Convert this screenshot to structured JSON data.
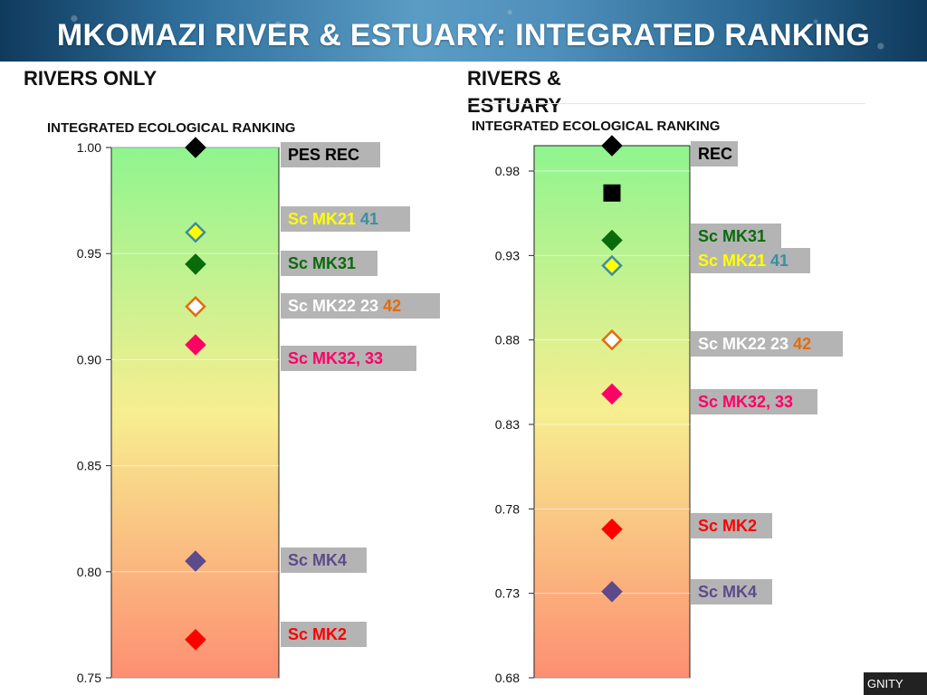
{
  "title": "MKOMAZI RIVER & ESTUARY: INTEGRATED RANKING",
  "sections": {
    "left": "RIVERS ONLY",
    "right_line1": "RIVERS  &",
    "right_line2": "ESTUARY"
  },
  "footer_text": "GNITY",
  "colors": {
    "gradient_top": "#8ff58f",
    "gradient_mid": "#f7ee90",
    "gradient_bottom": "#fd8f72",
    "label_box": "#b4b4b4",
    "black": "#000000",
    "dark_green": "#0a6b0a",
    "yellow": "#ffff00",
    "teal": "#3c8ea0",
    "white": "#ffffff",
    "orange": "#e36c0a",
    "pink": "#ff0066",
    "red": "#ff0000",
    "purple": "#5c4a8a"
  },
  "chart_data": [
    {
      "type": "scatter",
      "title": "INTEGRATED ECOLOGICAL RANKING",
      "ylim": [
        0.75,
        1.0
      ],
      "yticks": [
        1.0,
        0.95,
        0.9,
        0.85,
        0.8,
        0.75
      ],
      "ytick_labels": [
        "1.00",
        "0.95",
        "0.90",
        "0.85",
        "0.80",
        "0.75"
      ],
      "grid": true,
      "points": [
        {
          "label_parts": [
            {
              "text": "PES REC",
              "color": "#000000"
            }
          ],
          "value": 1.0,
          "marker": "diamond",
          "fill": "#000000",
          "stroke": "#000000"
        },
        {
          "label_parts": [
            {
              "text": "Sc MK21 ",
              "color": "#ffff00"
            },
            {
              "text": "41",
              "color": "#3c8ea0"
            }
          ],
          "value": 0.96,
          "marker": "diamond",
          "fill": "#ffff00",
          "stroke": "#3c8ea0"
        },
        {
          "label_parts": [
            {
              "text": "Sc MK31",
              "color": "#0a6b0a"
            }
          ],
          "value": 0.945,
          "marker": "diamond",
          "fill": "#0a6b0a",
          "stroke": "#0a6b0a"
        },
        {
          "label_parts": [
            {
              "text": "Sc MK22 23 ",
              "color": "#ffffff"
            },
            {
              "text": "42",
              "color": "#e36c0a"
            }
          ],
          "value": 0.925,
          "marker": "diamond",
          "fill": "#ffffff",
          "stroke": "#e36c0a"
        },
        {
          "label_parts": [
            {
              "text": "Sc MK32, 33",
              "color": "#ff0066"
            }
          ],
          "value": 0.907,
          "marker": "diamond",
          "fill": "#ff0066",
          "stroke": "#ff0066"
        },
        {
          "label_parts": [
            {
              "text": "Sc MK4",
              "color": "#5c4a8a"
            }
          ],
          "value": 0.805,
          "marker": "diamond",
          "fill": "#5c4a8a",
          "stroke": "#5c4a8a"
        },
        {
          "label_parts": [
            {
              "text": "Sc MK2",
              "color": "#ff0000"
            }
          ],
          "value": 0.768,
          "marker": "diamond",
          "fill": "#ff0000",
          "stroke": "#ff0000"
        }
      ]
    },
    {
      "type": "scatter",
      "title": "INTEGRATED ECOLOGICAL RANKING",
      "ylim": [
        0.68,
        0.995
      ],
      "yticks": [
        0.98,
        0.93,
        0.88,
        0.83,
        0.78,
        0.73,
        0.68
      ],
      "ytick_labels": [
        "0.98",
        "0.93",
        "0.88",
        "0.83",
        "0.78",
        "0.73",
        "0.68"
      ],
      "grid": true,
      "points": [
        {
          "label_parts": [
            {
              "text": "REC",
              "color": "#000000"
            }
          ],
          "value": 0.995,
          "marker": "diamond",
          "fill": "#000000",
          "stroke": "#000000"
        },
        {
          "label_parts": [],
          "value": 0.967,
          "marker": "square",
          "fill": "#000000",
          "stroke": "#000000"
        },
        {
          "label_parts": [
            {
              "text": "Sc MK31",
              "color": "#0a6b0a"
            }
          ],
          "value": 0.939,
          "marker": "diamond",
          "fill": "#0a6b0a",
          "stroke": "#0a6b0a"
        },
        {
          "label_parts": [
            {
              "text": "Sc MK21 ",
              "color": "#ffff00"
            },
            {
              "text": "41",
              "color": "#3c8ea0"
            }
          ],
          "value": 0.924,
          "marker": "diamond",
          "fill": "#ffff00",
          "stroke": "#3c8ea0"
        },
        {
          "label_parts": [
            {
              "text": "Sc MK22 23 ",
              "color": "#ffffff"
            },
            {
              "text": "42",
              "color": "#e36c0a"
            }
          ],
          "value": 0.88,
          "marker": "diamond",
          "fill": "#ffffff",
          "stroke": "#e36c0a"
        },
        {
          "label_parts": [
            {
              "text": "Sc MK32, 33",
              "color": "#ff0066"
            }
          ],
          "value": 0.848,
          "marker": "diamond",
          "fill": "#ff0066",
          "stroke": "#ff0066"
        },
        {
          "label_parts": [
            {
              "text": "Sc MK2",
              "color": "#ff0000"
            }
          ],
          "value": 0.768,
          "marker": "diamond",
          "fill": "#ff0000",
          "stroke": "#ff0000"
        },
        {
          "label_parts": [
            {
              "text": "Sc MK4",
              "color": "#5c4a8a"
            }
          ],
          "value": 0.731,
          "marker": "diamond",
          "fill": "#5c4a8a",
          "stroke": "#5c4a8a"
        }
      ]
    }
  ]
}
